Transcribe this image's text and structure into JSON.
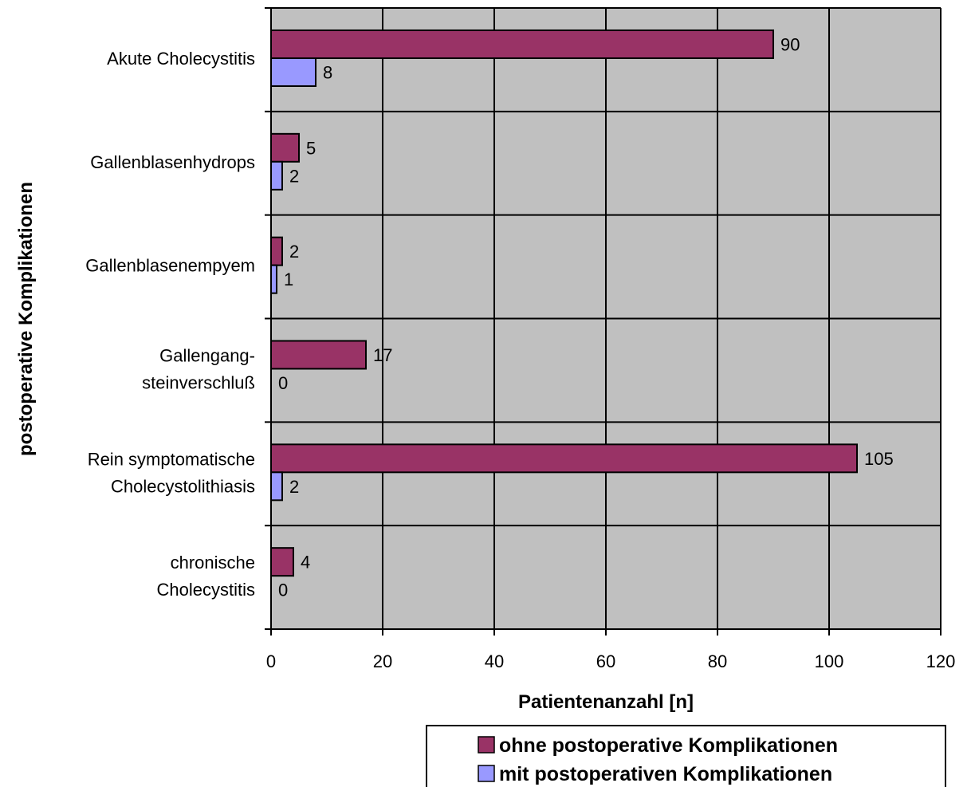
{
  "chart_data": {
    "type": "bar",
    "orientation": "horizontal",
    "categories": [
      [
        "Akute Cholecystitis"
      ],
      [
        "Gallenblasenhydrops"
      ],
      [
        "Gallenblasenempyem"
      ],
      [
        "Gallengang-",
        "steinverschluß"
      ],
      [
        "Rein symptomatische",
        "Cholecystolithiasis"
      ],
      [
        "chronische",
        "Cholecystitis"
      ]
    ],
    "series": [
      {
        "name": "ohne postoperative Komplikationen",
        "color": "#993366",
        "values": [
          90,
          5,
          2,
          17,
          105,
          4
        ]
      },
      {
        "name": "mit postoperativen Komplikationen",
        "color": "#9999ff",
        "values": [
          8,
          2,
          1,
          0,
          2,
          0
        ]
      }
    ],
    "xlabel": "Patientenanzahl [n]",
    "ylabel": "postoperative Komplikationen",
    "xlim": [
      0,
      120
    ],
    "xticks": [
      0,
      20,
      40,
      60,
      80,
      100,
      120
    ],
    "grid": true,
    "plot_background": "#c0c0c0",
    "legend_position": "bottom-right",
    "data_labels": true
  }
}
